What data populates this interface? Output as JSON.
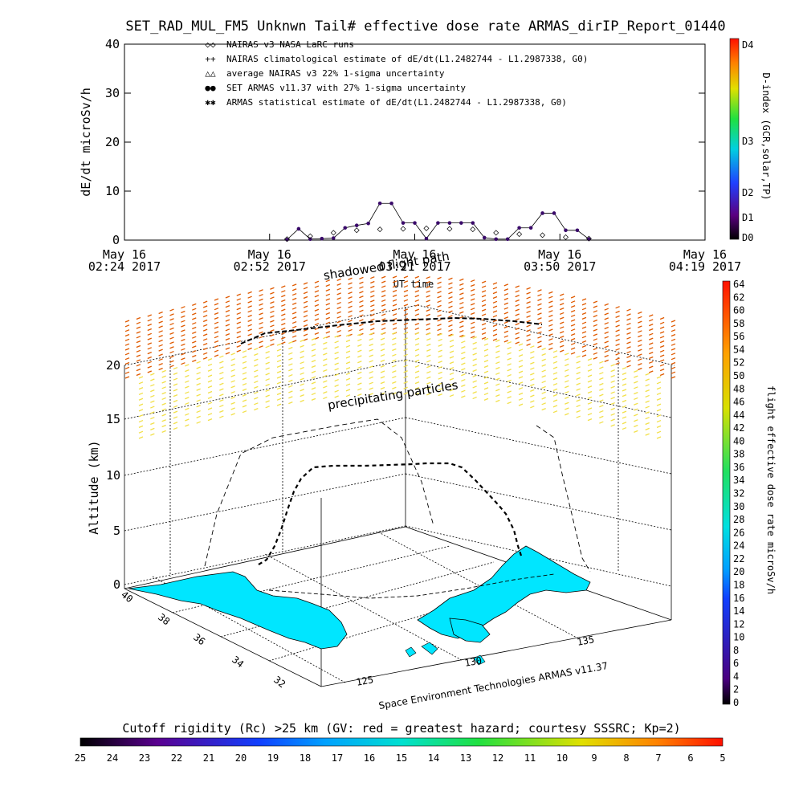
{
  "title": "SET_RAD_MUL_FM5 Unknwn Tail#  effective dose rate ARMAS_dirIP_Report_01440",
  "chart_data": [
    {
      "type": "scatter",
      "ylabel": "dE/dt microSv/h",
      "xlabel": "UT time",
      "ylim": [
        0,
        40
      ],
      "yticks": [
        "0",
        "10",
        "20",
        "30",
        "40"
      ],
      "xticks": [
        {
          "date": "May 16",
          "time": "02:24 2017"
        },
        {
          "date": "May 16",
          "time": "02:52 2017"
        },
        {
          "date": "May 16",
          "time": "03:21 2017"
        },
        {
          "date": "May 16",
          "time": "03:50 2017"
        },
        {
          "date": "May 16",
          "time": "04:19 2017"
        }
      ],
      "legend": [
        {
          "symbol": "◇◇",
          "label": "NAIRAS v3 NASA LaRC runs",
          "color": "#000000"
        },
        {
          "symbol": "++",
          "label": "NAIRAS climatological estimate of dE/dt(L1.2482744 - L1.2987338, G0)",
          "color": "#000000"
        },
        {
          "symbol": "△△",
          "label": "average NAIRAS v3 22% 1-sigma uncertainty",
          "color": "#000000"
        },
        {
          "symbol": "●●",
          "label": "SET ARMAS v11.37 with 27% 1-sigma uncertainty",
          "color": "#2020ff"
        },
        {
          "symbol": "✱✱",
          "label": "ARMAS statistical estimate of dE/dt(L1.2482744 - L1.2987338, G0)",
          "color": "#000000"
        }
      ],
      "series": [
        {
          "name": "SET ARMAS v11.37 with 27% 1-sigma uncertainty",
          "x_minutes": [
            0.28,
            0.3,
            0.32,
            0.34,
            0.36,
            0.38,
            0.4,
            0.42,
            0.44,
            0.46,
            0.48,
            0.5,
            0.52,
            0.54,
            0.56,
            0.58,
            0.6,
            0.62,
            0.64,
            0.66,
            0.68,
            0.7,
            0.72,
            0.74,
            0.76,
            0.78,
            0.8
          ],
          "values": [
            0.1,
            2.3,
            0.2,
            0.3,
            0.4,
            2.5,
            3.0,
            3.4,
            7.5,
            7.5,
            3.5,
            3.5,
            0.3,
            3.5,
            3.5,
            3.5,
            3.5,
            0.5,
            0.2,
            0.2,
            2.5,
            2.5,
            5.5,
            5.5,
            2.0,
            2.0,
            0.2
          ]
        },
        {
          "name": "NAIRAS v3 NASA LaRC runs",
          "x_minutes": [
            0.28,
            0.32,
            0.36,
            0.4,
            0.44,
            0.48,
            0.52,
            0.56,
            0.6,
            0.64,
            0.68,
            0.72,
            0.76,
            0.8
          ],
          "values": [
            0.2,
            0.8,
            1.5,
            2.0,
            2.2,
            2.3,
            2.4,
            2.3,
            2.2,
            1.5,
            1.2,
            1.0,
            0.6,
            0.3
          ]
        }
      ],
      "colorbar": {
        "label": "D-index (GCR,solar,TP)",
        "ticks": [
          "D4",
          "D3",
          "D2",
          "D1",
          "D0"
        ]
      }
    },
    {
      "type": "scatter",
      "zlabel": "Altitude (km)",
      "zticks": [
        "0",
        "5",
        "10",
        "15",
        "20"
      ],
      "lat_ticks": [
        "40",
        "38",
        "36",
        "34",
        "32"
      ],
      "lon_ticks": [
        "125",
        "130",
        "135"
      ],
      "annotations": [
        "shadowed flight path",
        "precipitating particles"
      ],
      "credit": "Space Environment Technologies ARMAS v11.37",
      "colorbar": {
        "label": "flight effective dose rate microSv/h",
        "ticks": [
          "64",
          "62",
          "60",
          "58",
          "56",
          "54",
          "52",
          "50",
          "48",
          "46",
          "44",
          "42",
          "40",
          "38",
          "36",
          "34",
          "32",
          "30",
          "28",
          "26",
          "24",
          "22",
          "20",
          "18",
          "16",
          "14",
          "12",
          "10",
          "8",
          "6",
          "4",
          "2",
          "0"
        ]
      }
    }
  ],
  "cutoff_bar": {
    "label": "Cutoff rigidity (Rc) >25 km (GV: red = greatest hazard; courtesy SSSRC; Kp=2)",
    "ticks": [
      "25",
      "24",
      "23",
      "22",
      "21",
      "20",
      "19",
      "18",
      "17",
      "16",
      "15",
      "14",
      "13",
      "12",
      "11",
      "10",
      "9",
      "8",
      "7",
      "6",
      "5"
    ]
  },
  "colors": {
    "armas": "#3a0a6a",
    "land": "#00e6ff",
    "particles_hi": "#e05a00",
    "particles_lo": "#f2e04a"
  }
}
